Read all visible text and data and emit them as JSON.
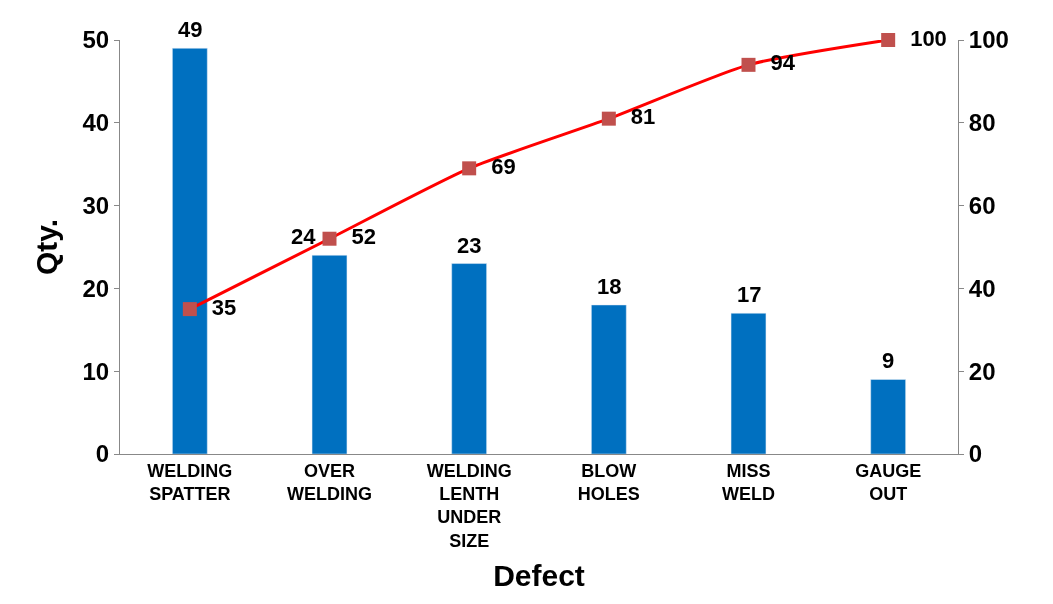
{
  "chart_data": {
    "type": "bar",
    "xlabel": "Defect",
    "ylabel": "Qty.",
    "categories": [
      "WELDING SPATTER",
      "OVER WELDING",
      "WELDING LENTH UNDER SIZE",
      "BLOW HOLES",
      "MISS WELD",
      "GAUGE OUT"
    ],
    "series": [
      {
        "color": "#0070c0",
        "values": [
          49,
          24,
          23,
          18,
          17,
          9
        ]
      },
      {
        "type": "line",
        "axis": "y2",
        "color": "#ff0000",
        "marker": "square",
        "values": [
          35,
          52,
          69,
          81,
          94,
          100
        ]
      }
    ],
    "ylim": [
      0,
      50
    ],
    "yticks": [
      0,
      10,
      20,
      30,
      40,
      50
    ],
    "y2lim": [
      0,
      100
    ],
    "y2ticks": [
      0,
      20,
      40,
      60,
      80,
      100
    ],
    "data_labels": true
  }
}
